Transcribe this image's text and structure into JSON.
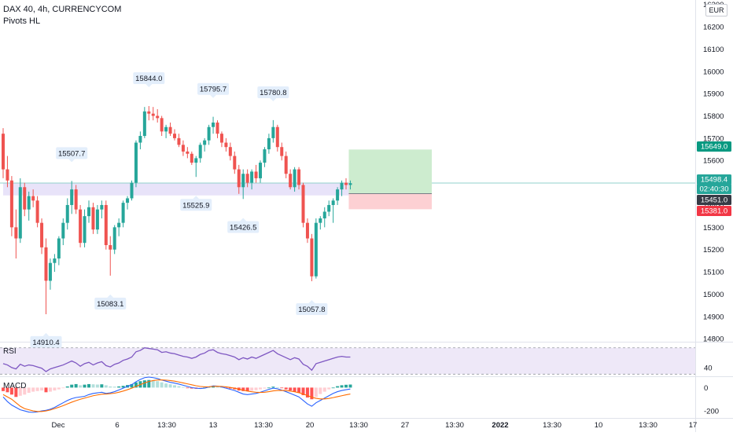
{
  "header": {
    "title": "DAX 40, 4h, CURRENCYCOM",
    "indicator": "Pivots HL",
    "currency": "EUR"
  },
  "colors": {
    "up": "#26a69a",
    "down": "#ef5350",
    "zone_fill": "#e6e0f8",
    "tp_zone": "#cdeccf",
    "sl_zone": "#fdd0d3",
    "rsi_line": "#7e57c2",
    "macd_line": "#2962ff",
    "signal_line": "#ff6d00",
    "current_price": "#26a69a",
    "entry_label": "#363a45",
    "stop_label": "#f23645"
  },
  "chart_data": [
    {
      "type": "candlestick",
      "name": "price",
      "x_tick_labels": [
        "Dec",
        "6",
        "13:30",
        "13",
        "13:30",
        "20",
        "13:30",
        "27",
        "13:30",
        "2022",
        "13:30",
        "10",
        "13:30",
        "17"
      ],
      "y_ticks": [
        16300.0,
        16200.0,
        16100.0,
        16000.0,
        15900.0,
        15800.0,
        15700.0,
        15600.0,
        15500.0,
        15400.0,
        15300.0,
        15200.0,
        15100.0,
        15000.0,
        14900.0,
        14800.0
      ],
      "ylim": [
        14790,
        16320
      ],
      "pivot_labels": [
        {
          "text": "15507.7",
          "price": 15507.7,
          "bar": 16,
          "kind": "high"
        },
        {
          "text": "14910.4",
          "price": 14910.4,
          "bar": 10,
          "kind": "low"
        },
        {
          "text": "15083.1",
          "price": 15083.1,
          "bar": 25,
          "kind": "low"
        },
        {
          "text": "15844.0",
          "price": 15844.0,
          "bar": 34,
          "kind": "high"
        },
        {
          "text": "15525.9",
          "price": 15525.9,
          "bar": 45,
          "kind": "low"
        },
        {
          "text": "15795.7",
          "price": 15795.7,
          "bar": 49,
          "kind": "high"
        },
        {
          "text": "15426.5",
          "price": 15426.5,
          "bar": 56,
          "kind": "low"
        },
        {
          "text": "15780.8",
          "price": 15780.8,
          "bar": 63,
          "kind": "high"
        },
        {
          "text": "15057.8",
          "price": 15057.8,
          "bar": 72,
          "kind": "low"
        }
      ],
      "price_labels": [
        {
          "text": "15649.0",
          "price": 15649.0,
          "role": "target"
        },
        {
          "text": "15498.4",
          "price": 15498.4,
          "role": "last"
        },
        {
          "text": "02:40:30",
          "price": 15470.0,
          "role": "countdown"
        },
        {
          "text": "15451.0",
          "price": 15451.0,
          "role": "entry"
        },
        {
          "text": "15381.0",
          "price": 15381.0,
          "role": "stop"
        }
      ],
      "support_zone": [
        15443,
        15497
      ],
      "position": {
        "start_bar": 81,
        "end_bar": 100,
        "target": 15649.0,
        "entry": 15451.0,
        "stop": 15381.0
      },
      "last_price": 15498.4,
      "candles": [
        [
          15720,
          15745,
          15520,
          15560
        ],
        [
          15560,
          15620,
          15480,
          15510
        ],
        [
          15510,
          15530,
          15260,
          15300
        ],
        [
          15300,
          15380,
          15160,
          15250
        ],
        [
          15250,
          15520,
          15230,
          15480
        ],
        [
          15480,
          15500,
          15350,
          15380
        ],
        [
          15380,
          15460,
          15330,
          15440
        ],
        [
          15440,
          15470,
          15390,
          15420
        ],
        [
          15420,
          15440,
          15300,
          15320
        ],
        [
          15320,
          15340,
          15180,
          15210
        ],
        [
          15210,
          15250,
          14910,
          15060
        ],
        [
          15060,
          15160,
          15020,
          15140
        ],
        [
          15140,
          15180,
          15100,
          15160
        ],
        [
          15160,
          15260,
          15130,
          15250
        ],
        [
          15250,
          15340,
          15220,
          15320
        ],
        [
          15320,
          15430,
          15290,
          15400
        ],
        [
          15400,
          15508,
          15360,
          15470
        ],
        [
          15470,
          15490,
          15360,
          15380
        ],
        [
          15380,
          15400,
          15210,
          15230
        ],
        [
          15230,
          15380,
          15210,
          15350
        ],
        [
          15350,
          15420,
          15320,
          15390
        ],
        [
          15390,
          15410,
          15270,
          15290
        ],
        [
          15290,
          15400,
          15270,
          15380
        ],
        [
          15380,
          15420,
          15340,
          15400
        ],
        [
          15400,
          15420,
          15200,
          15220
        ],
        [
          15220,
          15260,
          15083,
          15200
        ],
        [
          15200,
          15310,
          15180,
          15300
        ],
        [
          15300,
          15340,
          15260,
          15320
        ],
        [
          15320,
          15420,
          15300,
          15410
        ],
        [
          15410,
          15440,
          15380,
          15430
        ],
        [
          15430,
          15510,
          15420,
          15500
        ],
        [
          15500,
          15690,
          15480,
          15680
        ],
        [
          15680,
          15730,
          15650,
          15710
        ],
        [
          15710,
          15840,
          15700,
          15820
        ],
        [
          15820,
          15844,
          15780,
          15810
        ],
        [
          15810,
          15840,
          15780,
          15800
        ],
        [
          15800,
          15830,
          15770,
          15790
        ],
        [
          15790,
          15800,
          15710,
          15730
        ],
        [
          15730,
          15760,
          15700,
          15750
        ],
        [
          15750,
          15770,
          15710,
          15720
        ],
        [
          15720,
          15740,
          15690,
          15700
        ],
        [
          15700,
          15720,
          15660,
          15670
        ],
        [
          15670,
          15690,
          15620,
          15640
        ],
        [
          15640,
          15660,
          15610,
          15630
        ],
        [
          15630,
          15640,
          15580,
          15590
        ],
        [
          15590,
          15620,
          15526,
          15610
        ],
        [
          15610,
          15680,
          15590,
          15670
        ],
        [
          15670,
          15700,
          15640,
          15690
        ],
        [
          15690,
          15760,
          15670,
          15750
        ],
        [
          15750,
          15796,
          15720,
          15770
        ],
        [
          15770,
          15780,
          15700,
          15720
        ],
        [
          15720,
          15730,
          15660,
          15680
        ],
        [
          15680,
          15700,
          15640,
          15660
        ],
        [
          15660,
          15680,
          15600,
          15620
        ],
        [
          15620,
          15640,
          15540,
          15560
        ],
        [
          15560,
          15580,
          15450,
          15480
        ],
        [
          15480,
          15560,
          15427,
          15540
        ],
        [
          15540,
          15560,
          15480,
          15500
        ],
        [
          15500,
          15560,
          15470,
          15550
        ],
        [
          15550,
          15580,
          15500,
          15520
        ],
        [
          15520,
          15600,
          15500,
          15590
        ],
        [
          15590,
          15660,
          15570,
          15650
        ],
        [
          15650,
          15720,
          15630,
          15700
        ],
        [
          15700,
          15781,
          15680,
          15750
        ],
        [
          15750,
          15760,
          15640,
          15660
        ],
        [
          15660,
          15680,
          15600,
          15620
        ],
        [
          15620,
          15640,
          15520,
          15540
        ],
        [
          15540,
          15560,
          15470,
          15480
        ],
        [
          15480,
          15570,
          15460,
          15560
        ],
        [
          15560,
          15570,
          15470,
          15490
        ],
        [
          15490,
          15500,
          15300,
          15320
        ],
        [
          15320,
          15340,
          15230,
          15250
        ],
        [
          15250,
          15270,
          15058,
          15080
        ],
        [
          15080,
          15340,
          15070,
          15320
        ],
        [
          15320,
          15350,
          15290,
          15340
        ],
        [
          15340,
          15390,
          15300,
          15370
        ],
        [
          15370,
          15420,
          15350,
          15400
        ],
        [
          15400,
          15430,
          15320,
          15420
        ],
        [
          15420,
          15480,
          15400,
          15470
        ],
        [
          15470,
          15510,
          15440,
          15500
        ],
        [
          15500,
          15520,
          15470,
          15490
        ],
        [
          15490,
          15510,
          15470,
          15498
        ]
      ]
    },
    {
      "type": "line",
      "name": "RSI",
      "label": "RSI",
      "y_ticks": [
        40.0
      ],
      "ylim": [
        28,
        78
      ],
      "band": [
        30,
        70
      ],
      "values": [
        46,
        44,
        40,
        38,
        45,
        42,
        44,
        43,
        41,
        39,
        34,
        38,
        40,
        42,
        44,
        47,
        50,
        47,
        42,
        46,
        48,
        44,
        47,
        49,
        43,
        41,
        45,
        47,
        51,
        53,
        56,
        64,
        66,
        70,
        69,
        68,
        67,
        63,
        64,
        62,
        61,
        59,
        57,
        56,
        54,
        56,
        60,
        62,
        66,
        67,
        63,
        61,
        60,
        58,
        56,
        52,
        55,
        53,
        56,
        54,
        57,
        60,
        63,
        66,
        61,
        58,
        55,
        52,
        55,
        53,
        45,
        42,
        36,
        46,
        48,
        50,
        52,
        54,
        56,
        57,
        56,
        56
      ]
    },
    {
      "type": "bar",
      "name": "MACD",
      "label": "MACD",
      "y_ticks": [
        0.0,
        -200.0
      ],
      "ylim": [
        -260,
        90
      ],
      "histogram": [
        -30,
        -40,
        -60,
        -80,
        -70,
        -60,
        -45,
        -35,
        -30,
        -25,
        -40,
        -35,
        -25,
        -15,
        -5,
        10,
        25,
        30,
        20,
        25,
        30,
        28,
        26,
        28,
        20,
        10,
        8,
        10,
        15,
        22,
        30,
        45,
        55,
        62,
        65,
        62,
        55,
        45,
        35,
        28,
        20,
        12,
        5,
        -3,
        -8,
        -10,
        -5,
        0,
        6,
        12,
        10,
        4,
        -2,
        -8,
        -15,
        -25,
        -30,
        -32,
        -28,
        -22,
        -15,
        -8,
        0,
        8,
        3,
        -5,
        -15,
        -25,
        -35,
        -45,
        -65,
        -85,
        -100,
        -80,
        -55,
        -35,
        -15,
        0,
        12,
        20,
        24,
        26
      ],
      "macd": [
        -80,
        -120,
        -150,
        -170,
        -190,
        -200,
        -210,
        -212,
        -208,
        -200,
        -195,
        -185,
        -170,
        -150,
        -130,
        -110,
        -95,
        -85,
        -80,
        -75,
        -60,
        -50,
        -45,
        -40,
        -50,
        -45,
        -35,
        -20,
        -5,
        10,
        25,
        50,
        70,
        85,
        90,
        85,
        78,
        65,
        55,
        45,
        38,
        30,
        20,
        10,
        0,
        -5,
        -8,
        -5,
        5,
        15,
        12,
        5,
        -5,
        -15,
        -25,
        -40,
        -55,
        -60,
        -55,
        -50,
        -40,
        -28,
        -15,
        -5,
        -10,
        -22,
        -35,
        -50,
        -65,
        -80,
        -110,
        -140,
        -160,
        -130,
        -110,
        -90,
        -70,
        -50,
        -35,
        -25,
        -18,
        -12
      ],
      "signal": [
        -60,
        -80,
        -100,
        -130,
        -160,
        -180,
        -190,
        -200,
        -205,
        -205,
        -200,
        -192,
        -180,
        -168,
        -155,
        -140,
        -125,
        -112,
        -100,
        -90,
        -80,
        -70,
        -63,
        -57,
        -55,
        -52,
        -48,
        -40,
        -30,
        -18,
        -5,
        10,
        25,
        40,
        52,
        60,
        65,
        66,
        64,
        60,
        55,
        48,
        40,
        32,
        24,
        16,
        10,
        6,
        7,
        10,
        11,
        10,
        6,
        1,
        -5,
        -13,
        -22,
        -30,
        -36,
        -40,
        -42,
        -40,
        -35,
        -28,
        -25,
        -24,
        -26,
        -30,
        -36,
        -44,
        -55,
        -68,
        -82,
        -92,
        -97,
        -97,
        -93,
        -86,
        -78,
        -70,
        -62,
        -55
      ]
    }
  ]
}
